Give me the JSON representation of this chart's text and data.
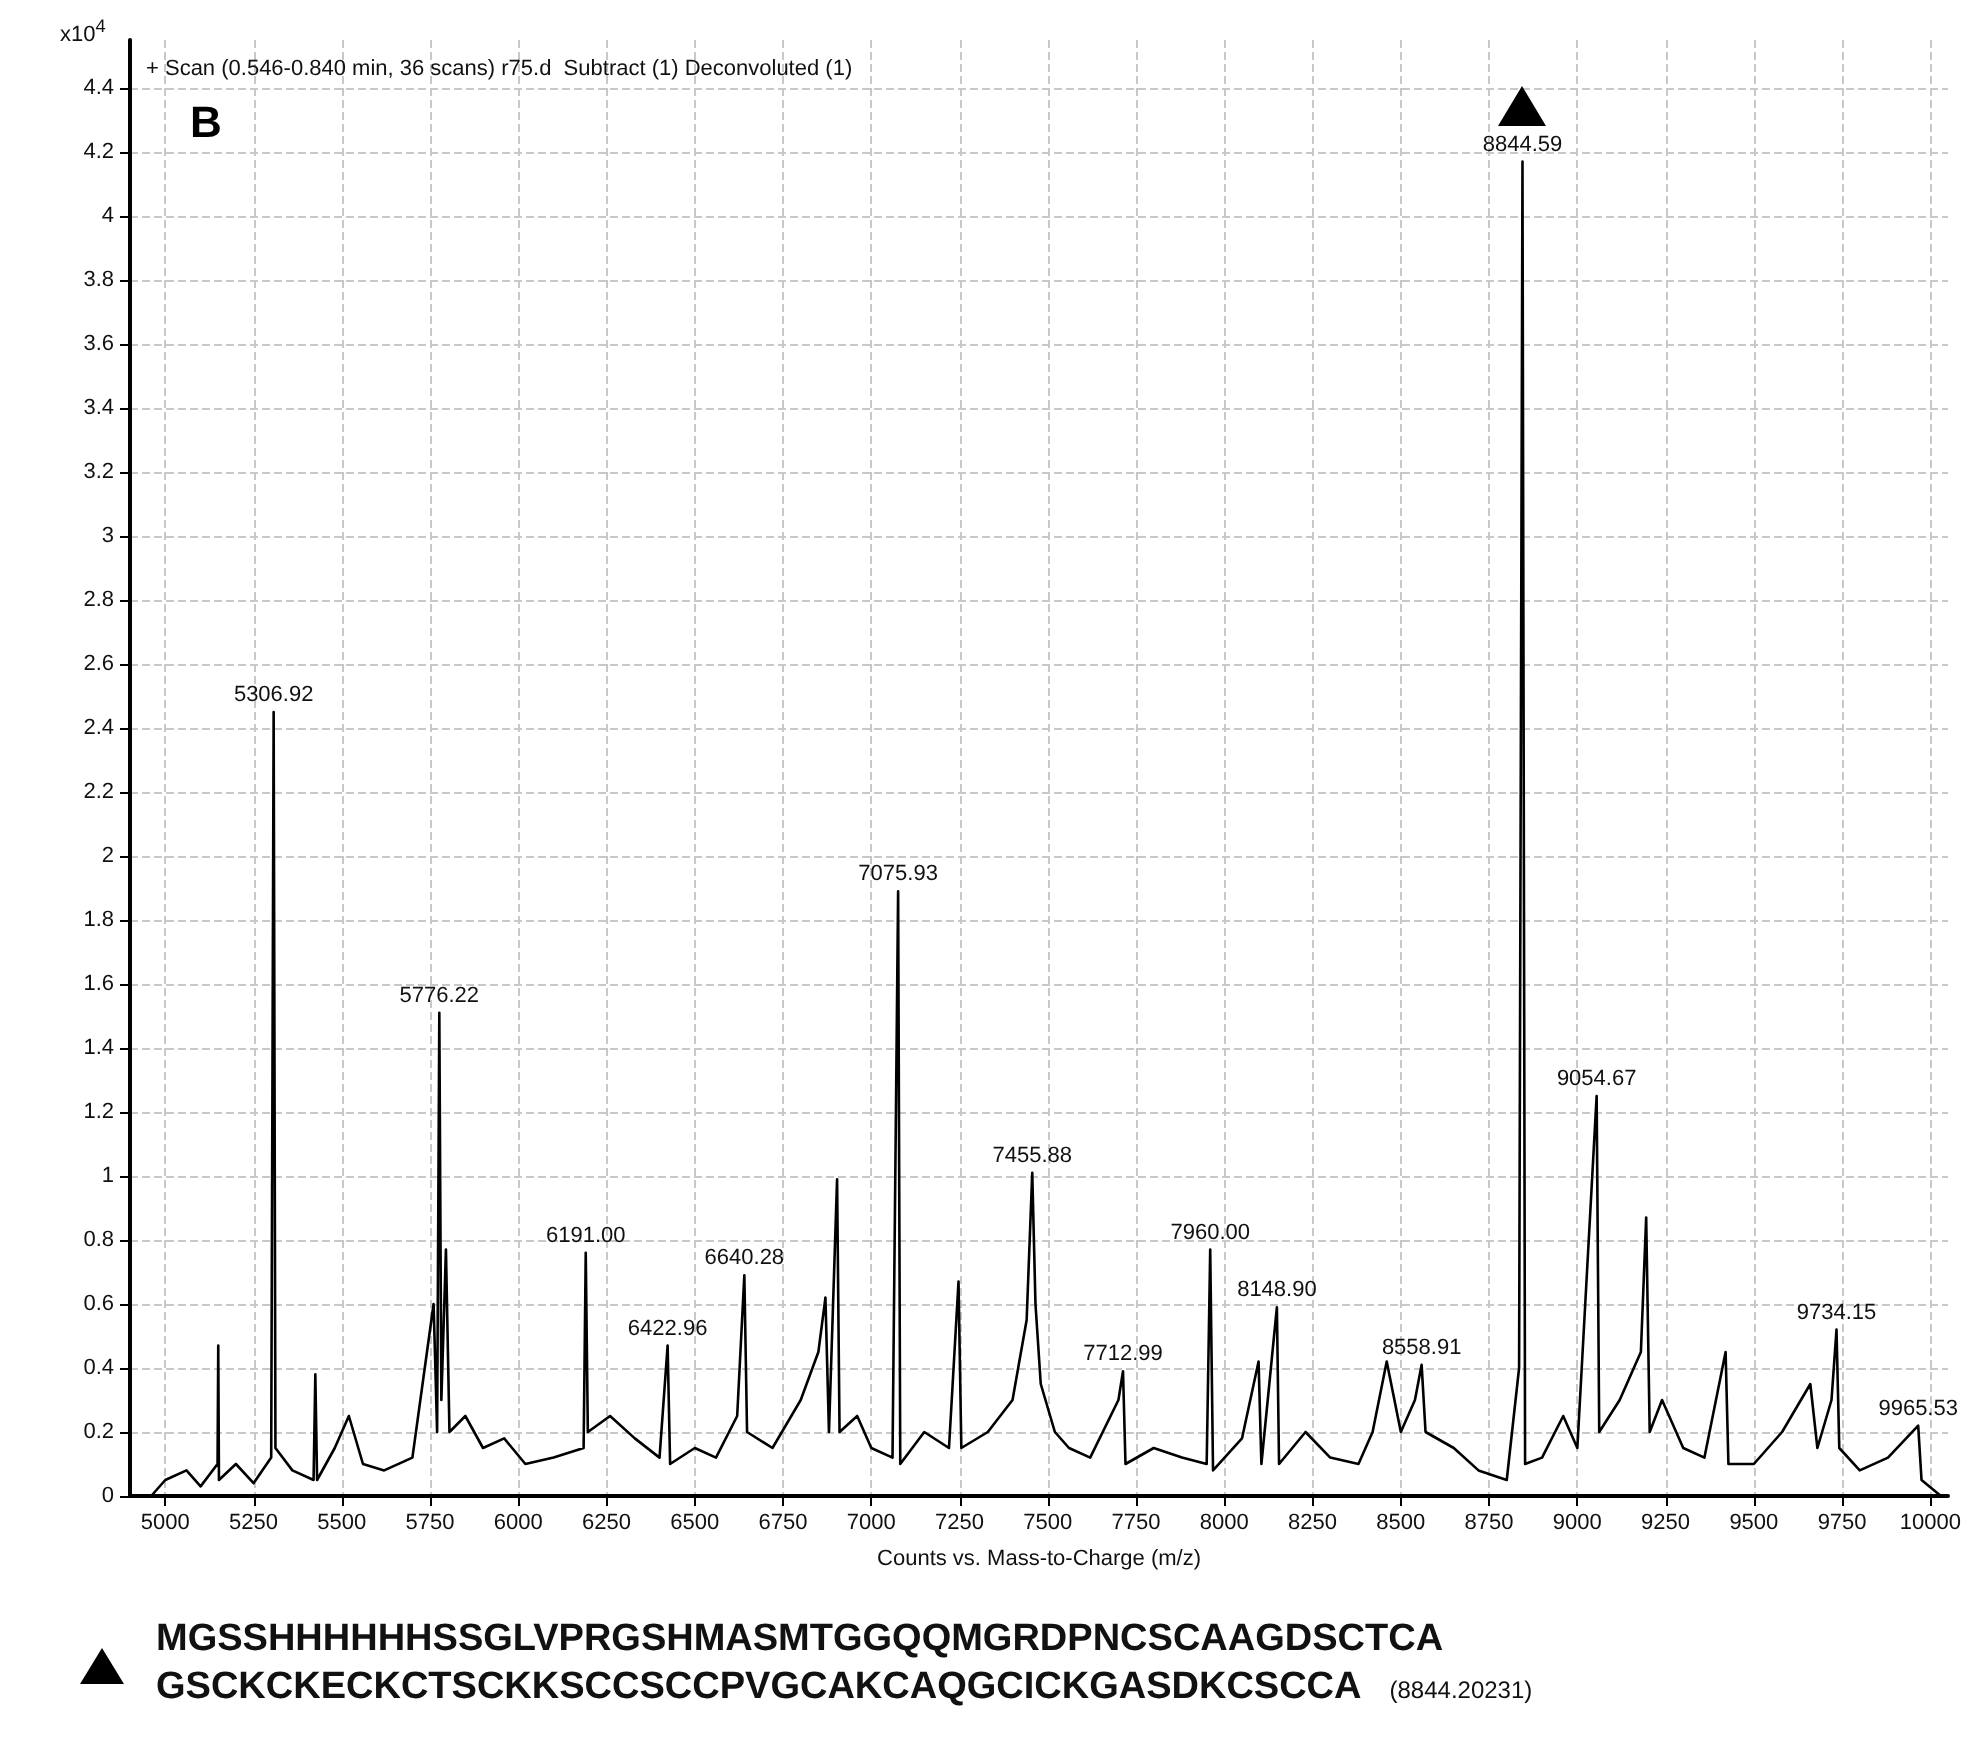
{
  "chart_data": {
    "type": "line",
    "title": "+ Scan (0.546-0.840 min, 36 scans) r75.d  Subtract (1) Deconvoluted (1)",
    "xlabel": "Counts vs. Mass-to-Charge (m/z)",
    "ylabel": "x10$^{4}$",
    "x": [
      4960,
      5000,
      5060,
      5100,
      5148,
      5150,
      5152,
      5200,
      5250,
      5300,
      5306.92,
      5312,
      5360,
      5420,
      5425,
      5430,
      5480,
      5520,
      5560,
      5620,
      5700,
      5760,
      5770,
      5776.22,
      5782,
      5795,
      5805,
      5850,
      5900,
      5960,
      6020,
      6100,
      6185,
      6191,
      6197,
      6260,
      6330,
      6400,
      6422.96,
      6430,
      6500,
      6560,
      6620,
      6640.28,
      6648,
      6720,
      6800,
      6850,
      6870,
      6880,
      6903,
      6910,
      6960,
      7000,
      7060,
      7075.93,
      7082,
      7150,
      7220,
      7247,
      7255,
      7330,
      7400,
      7440,
      7455.88,
      7465,
      7480,
      7520,
      7560,
      7620,
      7700,
      7712.99,
      7720,
      7800,
      7880,
      7950,
      7960,
      7968,
      8050,
      8097,
      8105,
      8148.9,
      8155,
      8230,
      8300,
      8380,
      8420,
      8460,
      8500,
      8540,
      8558.91,
      8570,
      8650,
      8720,
      8800,
      8835,
      8844.59,
      8852,
      8900,
      8960,
      9000,
      9054.67,
      9062,
      9120,
      9180,
      9195,
      9205,
      9240,
      9300,
      9360,
      9420,
      9428,
      9500,
      9580,
      9660,
      9680,
      9720,
      9734.15,
      9742,
      9800,
      9880,
      9965.53,
      9975,
      10030
    ],
    "series": [
      {
        "color": "#000000",
        "values": [
          0,
          0.05,
          0.08,
          0.03,
          0.1,
          0.47,
          0.05,
          0.1,
          0.04,
          0.12,
          2.45,
          0.15,
          0.08,
          0.05,
          0.38,
          0.05,
          0.15,
          0.25,
          0.1,
          0.08,
          0.12,
          0.6,
          0.2,
          1.51,
          0.3,
          0.77,
          0.2,
          0.25,
          0.15,
          0.18,
          0.1,
          0.12,
          0.15,
          0.76,
          0.2,
          0.25,
          0.18,
          0.12,
          0.47,
          0.1,
          0.15,
          0.12,
          0.25,
          0.69,
          0.2,
          0.15,
          0.3,
          0.45,
          0.62,
          0.2,
          0.99,
          0.2,
          0.25,
          0.15,
          0.12,
          1.89,
          0.1,
          0.2,
          0.15,
          0.67,
          0.15,
          0.2,
          0.3,
          0.55,
          1.01,
          0.6,
          0.35,
          0.2,
          0.15,
          0.12,
          0.3,
          0.39,
          0.1,
          0.15,
          0.12,
          0.1,
          0.77,
          0.08,
          0.18,
          0.42,
          0.1,
          0.59,
          0.1,
          0.2,
          0.12,
          0.1,
          0.2,
          0.42,
          0.2,
          0.3,
          0.41,
          0.2,
          0.15,
          0.08,
          0.05,
          0.4,
          4.17,
          0.1,
          0.12,
          0.25,
          0.15,
          1.25,
          0.2,
          0.3,
          0.45,
          0.87,
          0.2,
          0.3,
          0.15,
          0.12,
          0.45,
          0.1,
          0.1,
          0.2,
          0.35,
          0.15,
          0.3,
          0.52,
          0.15,
          0.08,
          0.12,
          0.22,
          0.05,
          0
        ]
      }
    ],
    "xlim": [
      4900,
      10050
    ],
    "xticks": [
      5000,
      5250,
      5500,
      5750,
      6000,
      6250,
      6500,
      6750,
      7000,
      7250,
      7500,
      7750,
      8000,
      8250,
      8500,
      8750,
      9000,
      9250,
      9500,
      9750,
      10000
    ],
    "ylim": [
      0,
      4.55
    ],
    "yticks": [
      0,
      0.2,
      0.4,
      0.6,
      0.8,
      1,
      1.2,
      1.4,
      1.6,
      1.8,
      2,
      2.2,
      2.4,
      2.6,
      2.8,
      3,
      3.2,
      3.4,
      3.6,
      3.8,
      4,
      4.2,
      4.4
    ],
    "grid": true,
    "marker": "none",
    "line_style": "solid",
    "annotations": [
      "B",
      {
        "text": "5306.92",
        "x": 5306.92,
        "y": 2.45
      },
      {
        "text": "5776.22",
        "x": 5776.22,
        "y": 1.51
      },
      {
        "text": "6191.00",
        "x": 6191,
        "y": 0.76
      },
      {
        "text": "6422.96",
        "x": 6422.96,
        "y": 0.47
      },
      {
        "text": "6640.28",
        "x": 6640.28,
        "y": 0.69
      },
      {
        "text": "7075.93",
        "x": 7075.93,
        "y": 1.89
      },
      {
        "text": "7455.88",
        "x": 7455.88,
        "y": 1.01
      },
      {
        "text": "7712.99",
        "x": 7712.99,
        "y": 0.39
      },
      {
        "text": "7960.00",
        "x": 7960,
        "y": 0.77
      },
      {
        "text": "8148.90",
        "x": 8148.9,
        "y": 0.59
      },
      {
        "text": "8558.91",
        "x": 8558.91,
        "y": 0.41
      },
      {
        "text": "8844.59",
        "x": 8844.59,
        "y": 4.17
      },
      {
        "text": "9054.67",
        "x": 9054.67,
        "y": 1.25
      },
      {
        "text": "9734.15",
        "x": 9734.15,
        "y": 0.52
      },
      {
        "text": "9965.53",
        "x": 9965.53,
        "y": 0.22
      },
      "MGSSHHHHHHSSGLVPRGSHMASMTGGQQMGRDPNCSCAAGDSCTCA",
      "GSCKCKECKCTSCKKSCCSCCPVGCAKCAQGCICKGASDKCSCCA",
      "(8844.20231)"
    ]
  }
}
